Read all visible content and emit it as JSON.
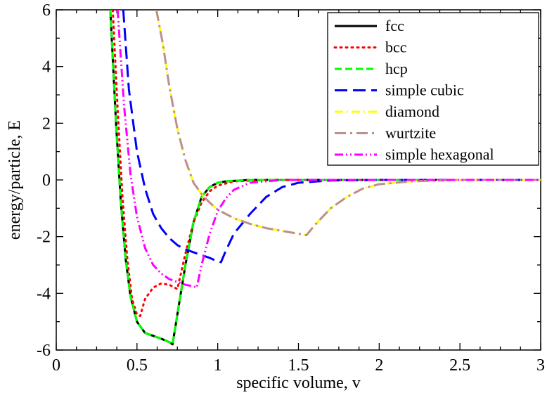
{
  "chart_data": {
    "type": "line",
    "xlabel": "specific volume, v",
    "ylabel": "energy/particle, E",
    "xlim": [
      0,
      3
    ],
    "ylim": [
      -6,
      6
    ],
    "x_ticks": [
      "0",
      "0.5",
      "1",
      "1.5",
      "2",
      "2.5",
      "3"
    ],
    "y_ticks": [
      "-6",
      "-4",
      "-2",
      "0",
      "2",
      "4",
      "6"
    ],
    "x_minor_step": 0.125,
    "y_minor_step": 1,
    "grid": false,
    "legend_position": "top-right",
    "series": [
      {
        "name": "fcc",
        "color": "#000000",
        "dash": "solid",
        "x": [
          0.335,
          0.37,
          0.4,
          0.43,
          0.46,
          0.5,
          0.55,
          0.6,
          0.65,
          0.7,
          0.72,
          0.74,
          0.76,
          0.8,
          0.85,
          0.9,
          0.95,
          1.0,
          1.05,
          1.2,
          1.5,
          2.0,
          3.0
        ],
        "y": [
          6.0,
          2.0,
          -0.8,
          -2.8,
          -4.1,
          -5.0,
          -5.4,
          -5.5,
          -5.6,
          -5.72,
          -5.8,
          -5.1,
          -4.4,
          -3.0,
          -1.5,
          -0.6,
          -0.25,
          -0.1,
          -0.05,
          0.0,
          0.0,
          0.0,
          0.0
        ]
      },
      {
        "name": "bcc",
        "color": "#ff0000",
        "dash": "dotted",
        "x": [
          0.35,
          0.38,
          0.41,
          0.44,
          0.47,
          0.5,
          0.52,
          0.55,
          0.6,
          0.65,
          0.7,
          0.75,
          0.8,
          0.85,
          0.9,
          0.95,
          1.0,
          1.1,
          1.3,
          1.6,
          2.0,
          3.0
        ],
        "y": [
          6.0,
          2.5,
          -0.6,
          -2.8,
          -4.2,
          -4.75,
          -4.8,
          -4.2,
          -3.8,
          -3.65,
          -3.7,
          -3.85,
          -2.6,
          -1.5,
          -0.8,
          -0.4,
          -0.2,
          -0.05,
          0.0,
          0.0,
          0.0,
          0.0
        ]
      },
      {
        "name": "hcp",
        "color": "#00ff00",
        "dash": "dashed",
        "x": [
          0.335,
          0.37,
          0.4,
          0.43,
          0.46,
          0.5,
          0.55,
          0.6,
          0.65,
          0.7,
          0.72,
          0.74,
          0.76,
          0.8,
          0.85,
          0.9,
          0.95,
          1.0,
          1.05,
          1.2,
          1.5,
          2.0,
          3.0
        ],
        "y": [
          6.0,
          2.0,
          -0.8,
          -2.8,
          -4.1,
          -5.0,
          -5.4,
          -5.5,
          -5.6,
          -5.72,
          -5.8,
          -5.1,
          -4.4,
          -3.0,
          -1.5,
          -0.6,
          -0.25,
          -0.1,
          -0.05,
          0.0,
          0.0,
          0.0,
          0.0
        ]
      },
      {
        "name": "simple cubic",
        "color": "#0000ff",
        "dash": "long-dash",
        "x": [
          0.415,
          0.45,
          0.5,
          0.55,
          0.6,
          0.65,
          0.7,
          0.75,
          0.8,
          0.85,
          0.9,
          0.95,
          1.0,
          1.02,
          1.05,
          1.1,
          1.2,
          1.3,
          1.4,
          1.5,
          1.7,
          2.0,
          3.0
        ],
        "y": [
          6.0,
          3.2,
          1.0,
          -0.3,
          -1.2,
          -1.7,
          -2.05,
          -2.3,
          -2.45,
          -2.55,
          -2.65,
          -2.75,
          -2.88,
          -2.9,
          -2.5,
          -1.9,
          -1.2,
          -0.6,
          -0.25,
          -0.1,
          -0.02,
          0.0,
          0.0
        ]
      },
      {
        "name": "diamond",
        "color": "#ffff00",
        "dash": "dash-dot",
        "x": [
          0.62,
          0.66,
          0.7,
          0.75,
          0.8,
          0.85,
          0.9,
          0.95,
          1.0,
          1.1,
          1.2,
          1.3,
          1.4,
          1.5,
          1.55,
          1.6,
          1.7,
          1.8,
          1.9,
          2.0,
          2.2,
          2.5,
          3.0
        ],
        "y": [
          6.0,
          4.8,
          3.3,
          1.8,
          0.7,
          -0.1,
          -0.5,
          -0.8,
          -1.05,
          -1.35,
          -1.55,
          -1.7,
          -1.8,
          -1.9,
          -1.95,
          -1.6,
          -1.0,
          -0.6,
          -0.3,
          -0.15,
          -0.05,
          0.0,
          0.0
        ]
      },
      {
        "name": "wurtzite",
        "color": "#bc8f8f",
        "dash": "long-dash-dot",
        "x": [
          0.62,
          0.66,
          0.7,
          0.75,
          0.8,
          0.85,
          0.9,
          0.95,
          1.0,
          1.1,
          1.2,
          1.3,
          1.4,
          1.5,
          1.55,
          1.6,
          1.7,
          1.8,
          1.9,
          2.0,
          2.2,
          2.5,
          3.0
        ],
        "y": [
          6.0,
          4.8,
          3.3,
          1.8,
          0.7,
          -0.1,
          -0.5,
          -0.8,
          -1.05,
          -1.35,
          -1.55,
          -1.7,
          -1.8,
          -1.9,
          -1.95,
          -1.6,
          -1.0,
          -0.6,
          -0.3,
          -0.15,
          -0.05,
          0.0,
          0.0
        ]
      },
      {
        "name": "simple hexagonal",
        "color": "#ff00ff",
        "dash": "dash-dot-dot",
        "x": [
          0.38,
          0.42,
          0.46,
          0.5,
          0.55,
          0.6,
          0.65,
          0.7,
          0.75,
          0.8,
          0.85,
          0.87,
          0.9,
          0.95,
          1.0,
          1.05,
          1.1,
          1.2,
          1.4,
          1.6,
          2.0,
          3.0
        ],
        "y": [
          6.0,
          2.6,
          0.2,
          -1.3,
          -2.4,
          -3.0,
          -3.3,
          -3.5,
          -3.6,
          -3.7,
          -3.75,
          -3.8,
          -3.0,
          -1.9,
          -1.1,
          -0.65,
          -0.35,
          -0.1,
          0.0,
          0.0,
          0.0,
          0.0
        ]
      }
    ]
  }
}
